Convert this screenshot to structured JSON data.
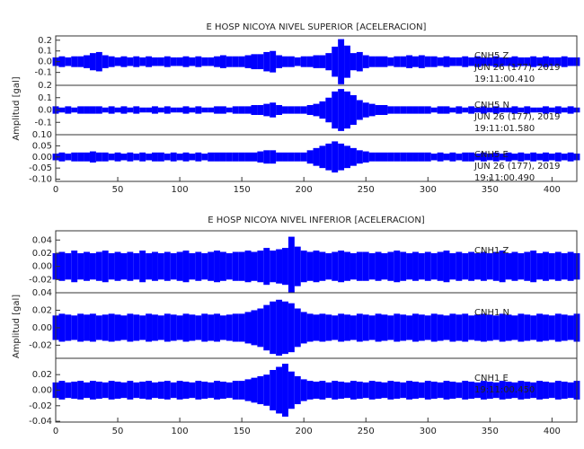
{
  "chart_data": [
    {
      "type": "waveform",
      "title": "E HOSP NICOYA NIVEL SUPERIOR [ACELERACION]",
      "y_label": "Amplitud [gal]",
      "x": [
        0,
        5,
        10,
        15,
        20,
        25,
        30,
        35,
        40,
        45,
        50,
        55,
        60,
        65,
        70,
        75,
        80,
        85,
        90,
        95,
        100,
        105,
        110,
        115,
        120,
        125,
        130,
        135,
        140,
        145,
        150,
        155,
        160,
        165,
        170,
        175,
        180,
        185,
        190,
        195,
        200,
        205,
        210,
        215,
        220,
        225,
        230,
        235,
        240,
        245,
        250,
        255,
        260,
        265,
        270,
        275,
        280,
        285,
        290,
        295,
        300,
        305,
        310,
        315,
        320,
        325,
        330,
        335,
        340,
        345,
        350,
        355,
        360,
        365,
        370,
        375,
        380,
        385,
        390,
        395,
        400,
        405,
        410,
        415,
        420
      ],
      "xlim": [
        0,
        420
      ],
      "xticks": [
        0,
        50,
        100,
        150,
        200,
        250,
        300,
        350,
        400
      ],
      "traces": [
        {
          "annotation": [
            "CNH5 Z",
            "JUN 26 (177), 2019",
            "19:11:00.410"
          ],
          "color": "#0000ff",
          "ylim": [
            -0.22,
            0.24
          ],
          "yticks": [
            -0.1,
            {
              "value": 0,
              "label": "0.0"
            },
            0.1,
            0.2
          ],
          "values": [
            0.04,
            0.05,
            0.04,
            0.05,
            0.05,
            0.06,
            0.08,
            0.09,
            0.06,
            0.05,
            0.04,
            0.05,
            0.04,
            0.05,
            0.04,
            0.05,
            0.04,
            0.04,
            0.05,
            0.04,
            0.04,
            0.05,
            0.04,
            0.05,
            0.04,
            0.04,
            0.05,
            0.06,
            0.05,
            0.05,
            0.05,
            0.06,
            0.07,
            0.07,
            0.09,
            0.1,
            0.06,
            0.05,
            0.05,
            0.04,
            0.05,
            0.05,
            0.06,
            0.06,
            0.08,
            0.14,
            0.21,
            0.15,
            0.08,
            0.09,
            0.06,
            0.05,
            0.05,
            0.05,
            0.04,
            0.05,
            0.05,
            0.06,
            0.05,
            0.06,
            0.05,
            0.05,
            0.04,
            0.05,
            0.04,
            0.04,
            0.05,
            0.04,
            0.05,
            0.04,
            0.04,
            0.05,
            0.04,
            0.04,
            0.05,
            0.04,
            0.04,
            0.05,
            0.04,
            0.05,
            0.04,
            0.04,
            0.05,
            0.04,
            0.04
          ]
        },
        {
          "annotation": [
            "CNH5 N",
            "JUN 26 (177), 2019",
            "19:11:01.580"
          ],
          "color": "#0000ff",
          "ylim": [
            -0.2,
            0.2
          ],
          "yticks": [
            -0.1,
            {
              "value": 0,
              "label": "0.0"
            },
            0.1,
            0.2
          ],
          "values": [
            0.03,
            0.02,
            0.03,
            0.02,
            0.03,
            0.03,
            0.03,
            0.03,
            0.02,
            0.03,
            0.02,
            0.03,
            0.02,
            0.03,
            0.02,
            0.02,
            0.03,
            0.02,
            0.03,
            0.02,
            0.02,
            0.03,
            0.02,
            0.03,
            0.02,
            0.02,
            0.03,
            0.03,
            0.02,
            0.03,
            0.03,
            0.03,
            0.04,
            0.04,
            0.05,
            0.06,
            0.04,
            0.03,
            0.03,
            0.03,
            0.03,
            0.04,
            0.05,
            0.07,
            0.1,
            0.15,
            0.17,
            0.15,
            0.12,
            0.08,
            0.06,
            0.05,
            0.04,
            0.04,
            0.03,
            0.03,
            0.03,
            0.03,
            0.03,
            0.03,
            0.03,
            0.02,
            0.03,
            0.03,
            0.02,
            0.03,
            0.02,
            0.03,
            0.02,
            0.03,
            0.02,
            0.03,
            0.02,
            0.02,
            0.03,
            0.02,
            0.03,
            0.02,
            0.02,
            0.03,
            0.02,
            0.03,
            0.02,
            0.03,
            0.02
          ]
        },
        {
          "annotation": [
            "CNH5 E",
            "JUN 26 (177), 2019",
            "19:11:00.490"
          ],
          "color": "#0000ff",
          "ylim": [
            -0.11,
            0.1
          ],
          "yticks": [
            {
              "value": -0.1,
              "label": "-0.10"
            },
            -0.05,
            {
              "value": 0,
              "label": "0.00"
            },
            0.05,
            {
              "value": 0.1,
              "label": "0.10"
            }
          ],
          "values": [
            0.015,
            0.02,
            0.015,
            0.02,
            0.02,
            0.02,
            0.025,
            0.02,
            0.02,
            0.015,
            0.02,
            0.015,
            0.02,
            0.015,
            0.02,
            0.015,
            0.02,
            0.02,
            0.015,
            0.02,
            0.015,
            0.02,
            0.015,
            0.02,
            0.015,
            0.02,
            0.02,
            0.02,
            0.02,
            0.02,
            0.02,
            0.02,
            0.02,
            0.025,
            0.03,
            0.03,
            0.02,
            0.02,
            0.02,
            0.02,
            0.02,
            0.03,
            0.04,
            0.05,
            0.06,
            0.07,
            0.06,
            0.05,
            0.04,
            0.03,
            0.025,
            0.02,
            0.02,
            0.02,
            0.02,
            0.02,
            0.02,
            0.02,
            0.02,
            0.02,
            0.02,
            0.015,
            0.02,
            0.015,
            0.02,
            0.015,
            0.02,
            0.02,
            0.015,
            0.02,
            0.015,
            0.02,
            0.015,
            0.02,
            0.015,
            0.02,
            0.015,
            0.02,
            0.015,
            0.02,
            0.015,
            0.02,
            0.015,
            0.02,
            0.015
          ]
        }
      ]
    },
    {
      "type": "waveform",
      "title": "E HOSP NICOYA NIVEL INFERIOR [ACELERACION]",
      "y_label": "Amplitud [gal]",
      "x": [
        0,
        5,
        10,
        15,
        20,
        25,
        30,
        35,
        40,
        45,
        50,
        55,
        60,
        65,
        70,
        75,
        80,
        85,
        90,
        95,
        100,
        105,
        110,
        115,
        120,
        125,
        130,
        135,
        140,
        145,
        150,
        155,
        160,
        165,
        170,
        175,
        180,
        185,
        190,
        195,
        200,
        205,
        210,
        215,
        220,
        225,
        230,
        235,
        240,
        245,
        250,
        255,
        260,
        265,
        270,
        275,
        280,
        285,
        290,
        295,
        300,
        305,
        310,
        315,
        320,
        325,
        330,
        335,
        340,
        345,
        350,
        355,
        360,
        365,
        370,
        375,
        380,
        385,
        390,
        395,
        400,
        405,
        410,
        415,
        420
      ],
      "xlim": [
        0,
        420
      ],
      "xticks": [
        0,
        50,
        100,
        150,
        200,
        250,
        300,
        350,
        400
      ],
      "traces": [
        {
          "annotation": [
            "CNH1 Z"
          ],
          "color": "#0000ff",
          "ylim": [
            -0.04,
            0.054
          ],
          "yticks": [
            -0.02,
            {
              "value": 0,
              "label": "0.00"
            },
            0.02,
            0.04
          ],
          "values": [
            0.02,
            0.022,
            0.02,
            0.024,
            0.02,
            0.022,
            0.02,
            0.022,
            0.024,
            0.02,
            0.022,
            0.02,
            0.022,
            0.02,
            0.024,
            0.02,
            0.022,
            0.02,
            0.022,
            0.02,
            0.022,
            0.024,
            0.02,
            0.022,
            0.02,
            0.022,
            0.024,
            0.022,
            0.02,
            0.022,
            0.022,
            0.024,
            0.022,
            0.024,
            0.028,
            0.024,
            0.026,
            0.028,
            0.045,
            0.03,
            0.024,
            0.022,
            0.024,
            0.022,
            0.02,
            0.022,
            0.024,
            0.022,
            0.02,
            0.022,
            0.022,
            0.02,
            0.022,
            0.02,
            0.022,
            0.024,
            0.022,
            0.02,
            0.022,
            0.02,
            0.022,
            0.02,
            0.022,
            0.024,
            0.02,
            0.022,
            0.02,
            0.022,
            0.02,
            0.022,
            0.02,
            0.022,
            0.024,
            0.02,
            0.022,
            0.02,
            0.022,
            0.024,
            0.02,
            0.022,
            0.02,
            0.022,
            0.02,
            0.022,
            0.02
          ]
        },
        {
          "annotation": [
            "CNH1 N"
          ],
          "color": "#0000ff",
          "ylim": [
            -0.035,
            0.04
          ],
          "yticks": [
            -0.02,
            {
              "value": 0,
              "label": "0.00"
            },
            0.02,
            0.04
          ],
          "values": [
            0.014,
            0.016,
            0.015,
            0.014,
            0.016,
            0.015,
            0.016,
            0.014,
            0.015,
            0.016,
            0.015,
            0.014,
            0.016,
            0.015,
            0.014,
            0.016,
            0.015,
            0.014,
            0.016,
            0.015,
            0.014,
            0.016,
            0.015,
            0.014,
            0.016,
            0.015,
            0.016,
            0.014,
            0.015,
            0.016,
            0.016,
            0.018,
            0.02,
            0.022,
            0.026,
            0.03,
            0.032,
            0.03,
            0.028,
            0.022,
            0.018,
            0.016,
            0.015,
            0.016,
            0.015,
            0.014,
            0.016,
            0.015,
            0.014,
            0.016,
            0.015,
            0.014,
            0.016,
            0.015,
            0.014,
            0.016,
            0.015,
            0.014,
            0.016,
            0.015,
            0.014,
            0.016,
            0.015,
            0.014,
            0.016,
            0.015,
            0.016,
            0.014,
            0.015,
            0.016,
            0.015,
            0.014,
            0.016,
            0.015,
            0.014,
            0.016,
            0.015,
            0.014,
            0.016,
            0.015,
            0.014,
            0.016,
            0.015,
            0.014,
            0.016
          ]
        },
        {
          "annotation": [
            "CNH1 E",
            "19:11:00.450"
          ],
          "color": "#0000ff",
          "ylim": [
            -0.041,
            0.041
          ],
          "yticks": [
            -0.04,
            -0.02,
            {
              "value": 0,
              "label": "0.00"
            },
            0.02
          ],
          "values": [
            0.01,
            0.012,
            0.01,
            0.011,
            0.012,
            0.01,
            0.012,
            0.011,
            0.01,
            0.012,
            0.011,
            0.01,
            0.012,
            0.01,
            0.011,
            0.012,
            0.01,
            0.011,
            0.012,
            0.01,
            0.012,
            0.011,
            0.01,
            0.012,
            0.011,
            0.01,
            0.012,
            0.011,
            0.01,
            0.012,
            0.012,
            0.014,
            0.016,
            0.018,
            0.02,
            0.026,
            0.03,
            0.034,
            0.024,
            0.018,
            0.014,
            0.012,
            0.011,
            0.012,
            0.01,
            0.012,
            0.011,
            0.01,
            0.012,
            0.011,
            0.01,
            0.012,
            0.011,
            0.01,
            0.012,
            0.011,
            0.01,
            0.012,
            0.011,
            0.01,
            0.012,
            0.011,
            0.01,
            0.012,
            0.011,
            0.01,
            0.012,
            0.011,
            0.01,
            0.012,
            0.011,
            0.01,
            0.012,
            0.011,
            0.01,
            0.012,
            0.011,
            0.01,
            0.012,
            0.011,
            0.01,
            0.012,
            0.011,
            0.01,
            0.012
          ]
        }
      ]
    }
  ]
}
